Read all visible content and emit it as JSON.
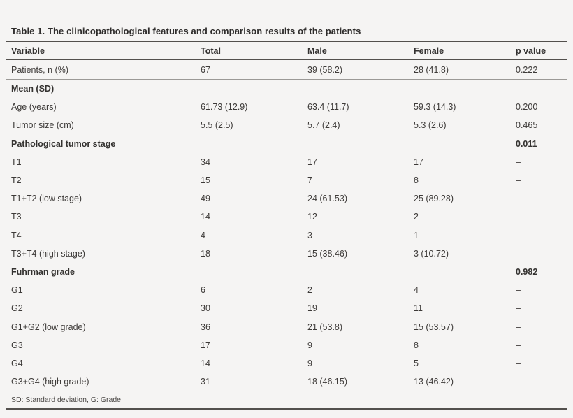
{
  "table": {
    "title": "Table 1. The clinicopathological features and comparison results of the patients",
    "columns": [
      "Variable",
      "Total",
      "Male",
      "Female",
      "p value"
    ],
    "rows": [
      {
        "variable": "Patients, n (%)",
        "total": "67",
        "male": "39 (58.2)",
        "female": "28 (41.8)",
        "p": "0.222",
        "section": false,
        "rule_below": true
      },
      {
        "variable": "Mean (SD)",
        "total": "",
        "male": "",
        "female": "",
        "p": "",
        "section": true,
        "rule_below": false
      },
      {
        "variable": "Age (years)",
        "total": "61.73 (12.9)",
        "male": "63.4 (11.7)",
        "female": "59.3 (14.3)",
        "p": "0.200",
        "section": false,
        "rule_below": false
      },
      {
        "variable": "Tumor size (cm)",
        "total": "5.5 (2.5)",
        "male": "5.7 (2.4)",
        "female": "5.3 (2.6)",
        "p": "0.465",
        "section": false,
        "rule_below": false
      },
      {
        "variable": "Pathological tumor stage",
        "total": "",
        "male": "",
        "female": "",
        "p": "0.011",
        "section": true,
        "rule_below": false
      },
      {
        "variable": "T1",
        "total": "34",
        "male": "17",
        "female": "17",
        "p": "–",
        "section": false,
        "rule_below": false
      },
      {
        "variable": "T2",
        "total": "15",
        "male": "7",
        "female": "8",
        "p": "–",
        "section": false,
        "rule_below": false
      },
      {
        "variable": "T1+T2 (low stage)",
        "total": "49",
        "male": "24 (61.53)",
        "female": "25 (89.28)",
        "p": "–",
        "section": false,
        "rule_below": false
      },
      {
        "variable": "T3",
        "total": "14",
        "male": "12",
        "female": "2",
        "p": "–",
        "section": false,
        "rule_below": false
      },
      {
        "variable": "T4",
        "total": "4",
        "male": "3",
        "female": "1",
        "p": "–",
        "section": false,
        "rule_below": false
      },
      {
        "variable": "T3+T4 (high stage)",
        "total": "18",
        "male": "15 (38.46)",
        "female": "3 (10.72)",
        "p": "–",
        "section": false,
        "rule_below": false
      },
      {
        "variable": "Fuhrman grade",
        "total": "",
        "male": "",
        "female": "",
        "p": "0.982",
        "section": true,
        "rule_below": false
      },
      {
        "variable": "G1",
        "total": "6",
        "male": "2",
        "female": "4",
        "p": "–",
        "section": false,
        "rule_below": false
      },
      {
        "variable": "G2",
        "total": "30",
        "male": "19",
        "female": "11",
        "p": "–",
        "section": false,
        "rule_below": false
      },
      {
        "variable": "G1+G2 (low grade)",
        "total": "36",
        "male": "21 (53.8)",
        "female": "15 (53.57)",
        "p": "–",
        "section": false,
        "rule_below": false
      },
      {
        "variable": "G3",
        "total": "17",
        "male": "9",
        "female": "8",
        "p": "–",
        "section": false,
        "rule_below": false
      },
      {
        "variable": "G4",
        "total": "14",
        "male": "9",
        "female": "5",
        "p": "–",
        "section": false,
        "rule_below": false
      },
      {
        "variable": "G3+G4 (high grade)",
        "total": "31",
        "male": "18 (46.15)",
        "female": "13 (46.42)",
        "p": "–",
        "section": false,
        "rule_below": false
      }
    ],
    "footnote": "SD: Standard deviation, G: Grade"
  }
}
